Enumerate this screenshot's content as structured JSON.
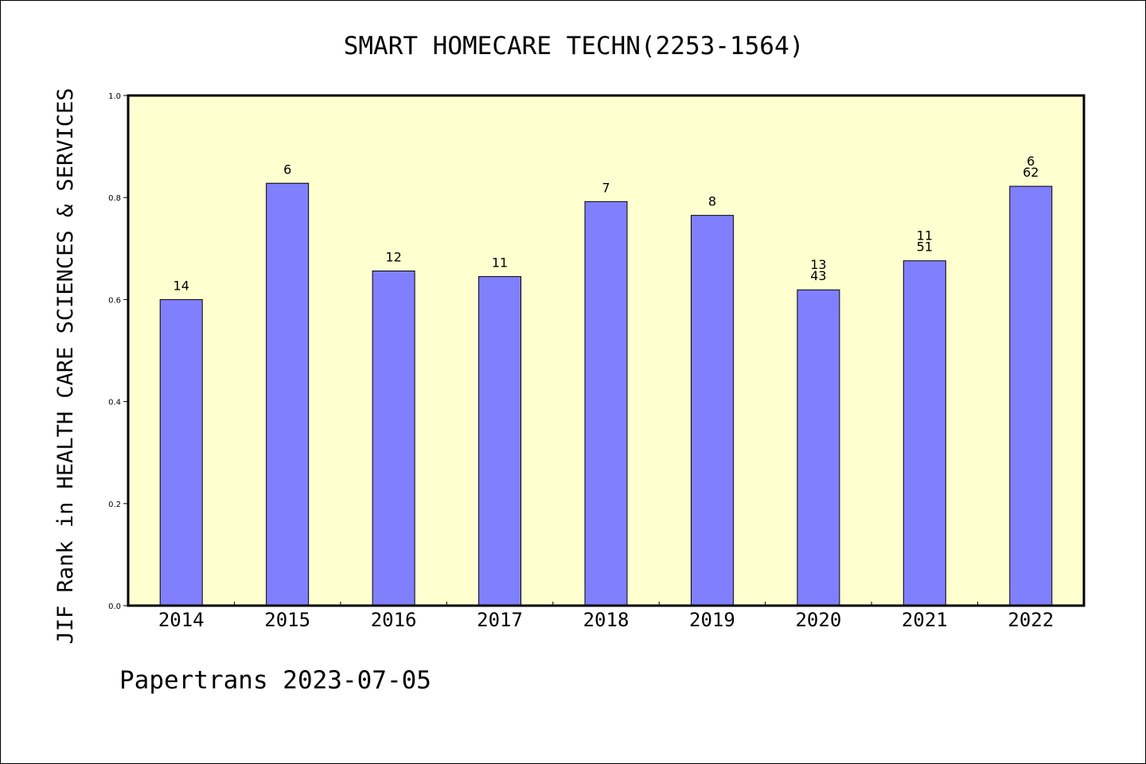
{
  "chart_data": {
    "type": "bar",
    "title": "SMART HOMECARE TECHN(2253-1564)",
    "xlabel": "",
    "ylabel": "JIF Rank in HEALTH CARE SCIENCES & SERVICES",
    "categories": [
      "2014",
      "2015",
      "2016",
      "2017",
      "2018",
      "2019",
      "2020",
      "2021",
      "2022"
    ],
    "values": [
      0.6,
      0.828,
      0.656,
      0.645,
      0.792,
      0.765,
      0.619,
      0.676,
      0.822
    ],
    "data_labels": [
      [
        "14"
      ],
      [
        "6"
      ],
      [
        "12"
      ],
      [
        "11"
      ],
      [
        "7"
      ],
      [
        "8"
      ],
      [
        "13",
        "43"
      ],
      [
        "11",
        "51"
      ],
      [
        "6",
        "62"
      ]
    ],
    "ylim": [
      0.0,
      1.0
    ],
    "yticks": [
      "0.0",
      "0.2",
      "0.4",
      "0.6",
      "0.8",
      "1.0"
    ],
    "grid": false,
    "colors": {
      "bar": "#8080ff",
      "plot_background": "#ffffd0",
      "frame": "#000000"
    }
  },
  "footer": "Papertrans 2023-07-05"
}
